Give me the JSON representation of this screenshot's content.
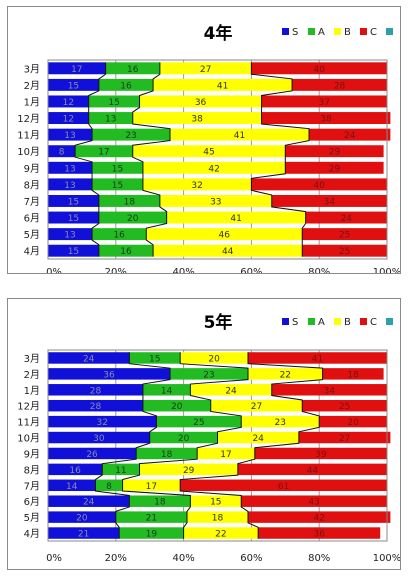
{
  "chart_data": [
    {
      "type": "bar",
      "stacked": "percent",
      "orientation": "horizontal",
      "title": "4年",
      "categories": [
        "3月",
        "2月",
        "1月",
        "12月",
        "11月",
        "10月",
        "9月",
        "8月",
        "7月",
        "6月",
        "5月",
        "4月"
      ],
      "series": [
        {
          "name": "S",
          "color": "#1010d8",
          "values": [
            17,
            15,
            12,
            12,
            13,
            8,
            13,
            13,
            15,
            15,
            13,
            15
          ]
        },
        {
          "name": "A",
          "color": "#22bb22",
          "values": [
            16,
            16,
            15,
            13,
            23,
            17,
            15,
            15,
            18,
            20,
            16,
            16
          ]
        },
        {
          "name": "B",
          "color": "#ffff00",
          "values": [
            27,
            41,
            36,
            38,
            41,
            45,
            42,
            32,
            33,
            41,
            46,
            44
          ]
        },
        {
          "name": "C",
          "color": "#e01010",
          "values": [
            40,
            28,
            37,
            38,
            24,
            29,
            29,
            40,
            34,
            24,
            25,
            25
          ]
        },
        {
          "name": "",
          "color": "#30a0a8",
          "values": [
            0,
            0,
            0,
            0,
            0,
            0,
            0,
            0,
            0,
            0,
            0,
            0
          ]
        }
      ],
      "x_ticks": [
        "0%",
        "20%",
        "40%",
        "60%",
        "80%",
        "100%"
      ],
      "xlim": [
        0,
        100
      ],
      "series_lines": true,
      "grid": "vertical",
      "legend": "top-right"
    },
    {
      "type": "bar",
      "stacked": "percent",
      "orientation": "horizontal",
      "title": "5年",
      "categories": [
        "3月",
        "2月",
        "1月",
        "12月",
        "11月",
        "10月",
        "9月",
        "8月",
        "7月",
        "6月",
        "5月",
        "4月"
      ],
      "series": [
        {
          "name": "S",
          "color": "#1010d8",
          "values": [
            24,
            36,
            28,
            28,
            32,
            30,
            26,
            16,
            14,
            24,
            20,
            21
          ]
        },
        {
          "name": "A",
          "color": "#22bb22",
          "values": [
            15,
            23,
            14,
            20,
            25,
            20,
            18,
            11,
            8,
            18,
            21,
            19
          ]
        },
        {
          "name": "B",
          "color": "#ffff00",
          "values": [
            20,
            22,
            24,
            27,
            23,
            24,
            17,
            29,
            17,
            15,
            18,
            22
          ]
        },
        {
          "name": "C",
          "color": "#e01010",
          "values": [
            41,
            18,
            34,
            25,
            20,
            27,
            39,
            44,
            61,
            43,
            42,
            36
          ]
        },
        {
          "name": "",
          "color": "#30a0a8",
          "values": [
            0,
            0,
            0,
            0,
            0,
            0,
            0,
            0,
            0,
            0,
            0,
            0
          ]
        }
      ],
      "x_ticks": [
        "0%",
        "20%",
        "40%",
        "60%",
        "80%",
        "100%"
      ],
      "xlim": [
        0,
        100
      ],
      "series_lines": true,
      "grid": "vertical",
      "legend": "top-right"
    }
  ]
}
